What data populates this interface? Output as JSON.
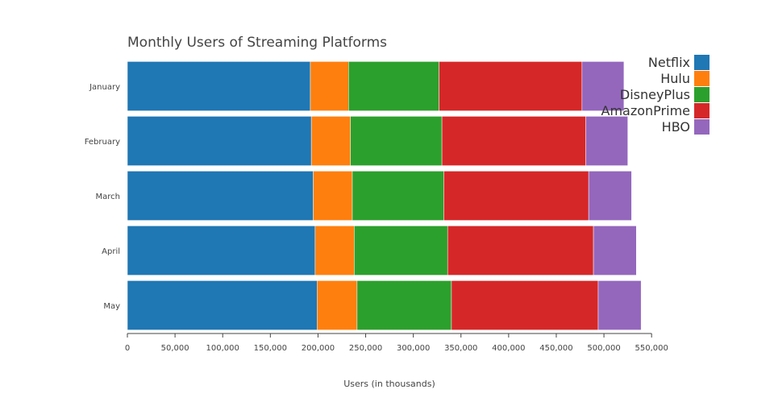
{
  "chart_data": {
    "type": "bar",
    "orientation": "horizontal",
    "stacked": true,
    "title": "Monthly Users of Streaming Platforms",
    "xlabel": "Users (in thousands)",
    "ylabel": "",
    "xlim": [
      0,
      560000
    ],
    "x_ticks": [
      0,
      50000,
      100000,
      150000,
      200000,
      250000,
      300000,
      350000,
      400000,
      450000,
      500000,
      550000
    ],
    "x_tick_labels": [
      "0",
      "50,000",
      "100,000",
      "150,000",
      "200,000",
      "250,000",
      "300,000",
      "350,000",
      "400,000",
      "450,000",
      "500,000",
      "550,000"
    ],
    "categories": [
      "January",
      "February",
      "March",
      "April",
      "May"
    ],
    "series": [
      {
        "name": "Netflix",
        "color": "#1f77b4",
        "values": [
          192000,
          193000,
          195000,
          197000,
          199000
        ]
      },
      {
        "name": "Hulu",
        "color": "#ff7f0e",
        "values": [
          40000,
          41000,
          41000,
          41000,
          42000
        ]
      },
      {
        "name": "DisneyPlus",
        "color": "#2ca02c",
        "values": [
          95000,
          96000,
          96000,
          98000,
          99000
        ]
      },
      {
        "name": "AmazonPrime",
        "color": "#d62728",
        "values": [
          150000,
          151000,
          152000,
          153000,
          154000
        ]
      },
      {
        "name": "HBO",
        "color": "#9467bd",
        "values": [
          44000,
          44000,
          45000,
          45000,
          45000
        ]
      }
    ],
    "grid": false,
    "legend_position": "top-right"
  }
}
